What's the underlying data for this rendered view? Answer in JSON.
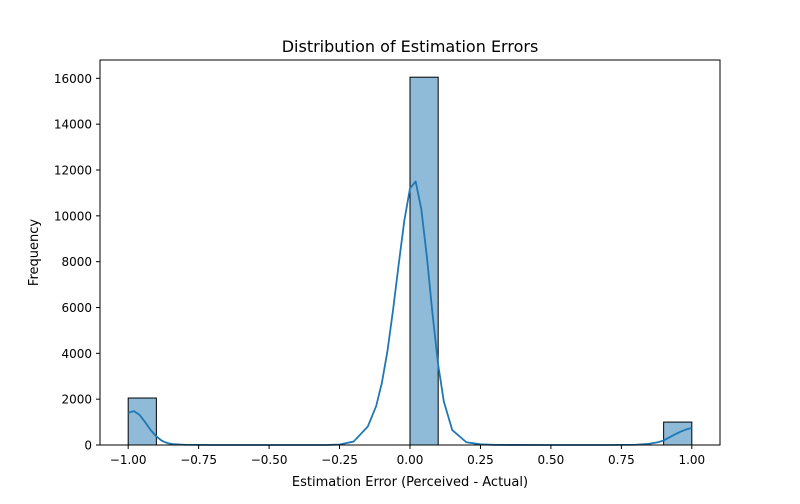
{
  "chart_data": {
    "type": "bar",
    "title": "Distribution of Estimation Errors",
    "xlabel": "Estimation Error (Perceived - Actual)",
    "ylabel": "Frequency",
    "xlim": [
      -1.1,
      1.1
    ],
    "ylim": [
      0,
      16800
    ],
    "grid": false,
    "bin_width": 0.1,
    "bins": [
      {
        "x0": -1.0,
        "x1": -0.9,
        "count": 2050
      },
      {
        "x0": 0.0,
        "x1": 0.1,
        "count": 16050
      },
      {
        "x0": 0.9,
        "x1": 1.0,
        "count": 1000
      }
    ],
    "kde": {
      "x": [
        -1.0,
        -0.98,
        -0.96,
        -0.94,
        -0.92,
        -0.9,
        -0.88,
        -0.86,
        -0.84,
        -0.8,
        -0.7,
        -0.5,
        -0.3,
        -0.25,
        -0.2,
        -0.15,
        -0.12,
        -0.1,
        -0.08,
        -0.06,
        -0.04,
        -0.02,
        0.0,
        0.02,
        0.04,
        0.06,
        0.08,
        0.1,
        0.12,
        0.15,
        0.2,
        0.25,
        0.3,
        0.5,
        0.7,
        0.8,
        0.84,
        0.88,
        0.9,
        0.92,
        0.94,
        0.96,
        0.98,
        1.0
      ],
      "y": [
        1400,
        1480,
        1320,
        1000,
        650,
        370,
        180,
        80,
        35,
        10,
        0,
        0,
        0,
        20,
        150,
        800,
        1700,
        2700,
        4100,
        5900,
        7900,
        9800,
        11200,
        11500,
        10300,
        8200,
        5700,
        3500,
        1900,
        650,
        120,
        30,
        5,
        0,
        0,
        10,
        40,
        120,
        200,
        330,
        460,
        580,
        680,
        740
      ]
    },
    "xticks": [
      -1.0,
      -0.75,
      -0.5,
      -0.25,
      0.0,
      0.25,
      0.5,
      0.75,
      1.0
    ],
    "xtick_labels": [
      "−1.00",
      "−0.75",
      "−0.50",
      "−0.25",
      "0.00",
      "0.25",
      "0.50",
      "0.75",
      "1.00"
    ],
    "yticks": [
      0,
      2000,
      4000,
      6000,
      8000,
      10000,
      12000,
      14000,
      16000
    ],
    "ytick_labels": [
      "0",
      "2000",
      "4000",
      "6000",
      "8000",
      "10000",
      "12000",
      "14000",
      "16000"
    ],
    "colors": {
      "bar_fill": "#8fbbd9",
      "bar_edge": "#000000",
      "kde_line": "#1f77b4"
    }
  }
}
